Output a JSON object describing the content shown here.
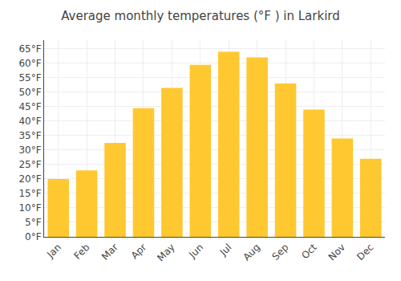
{
  "chart_data": {
    "type": "bar",
    "title": "Average monthly temperatures (°F ) in Larkird",
    "categories": [
      "Jan",
      "Feb",
      "Mar",
      "Apr",
      "May",
      "Jun",
      "Jul",
      "Aug",
      "Sep",
      "Oct",
      "Nov",
      "Dec"
    ],
    "values": [
      20,
      23,
      32.5,
      44.5,
      51.5,
      59.5,
      64,
      62,
      53,
      44,
      34,
      27
    ],
    "color": "#FFC830",
    "ylim": [
      0,
      68
    ],
    "yticks": [
      {
        "value": 0,
        "label": "0°F"
      },
      {
        "value": 5,
        "label": "5°F"
      },
      {
        "value": 10,
        "label": "10°F"
      },
      {
        "value": 15,
        "label": "15°F"
      },
      {
        "value": 20,
        "label": "20°F"
      },
      {
        "value": 25,
        "label": "25°F"
      },
      {
        "value": 30,
        "label": "30°F"
      },
      {
        "value": 35,
        "label": "35°F"
      },
      {
        "value": 40,
        "label": "40°F"
      },
      {
        "value": 45,
        "label": "45°F"
      },
      {
        "value": 50,
        "label": "50°F"
      },
      {
        "value": 55,
        "label": "55°F"
      },
      {
        "value": 60,
        "label": "60°F"
      },
      {
        "value": 65,
        "label": "65°F"
      }
    ],
    "grid": true
  }
}
